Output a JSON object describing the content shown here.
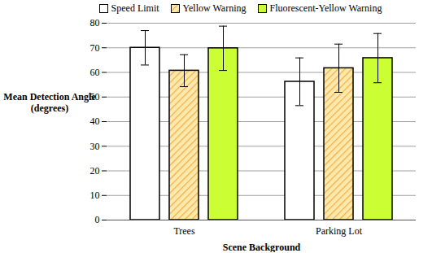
{
  "chart_data": {
    "type": "bar",
    "categories": [
      "Trees",
      "Parking Lot"
    ],
    "series": [
      {
        "name": "Speed Limit",
        "color": "#ffffff",
        "values": [
          70.0,
          56.2
        ],
        "error": [
          7.0,
          9.7
        ]
      },
      {
        "name": "Yellow Warning",
        "color": "#fde9a9",
        "values": [
          60.7,
          61.7
        ],
        "error": [
          6.5,
          9.8
        ]
      },
      {
        "name": "Fluorescent-Yellow Warning",
        "color": "#ccff33",
        "values": [
          69.8,
          65.8
        ],
        "error": [
          9.0,
          10.0
        ]
      }
    ],
    "xlabel": "Scene Background",
    "ylabel": "Mean Detection Angle\n(degrees)",
    "ylim": [
      0,
      80
    ],
    "yticks": [
      0,
      10,
      20,
      30,
      40,
      50,
      60,
      70,
      80
    ],
    "grid": true,
    "legend": "top"
  }
}
